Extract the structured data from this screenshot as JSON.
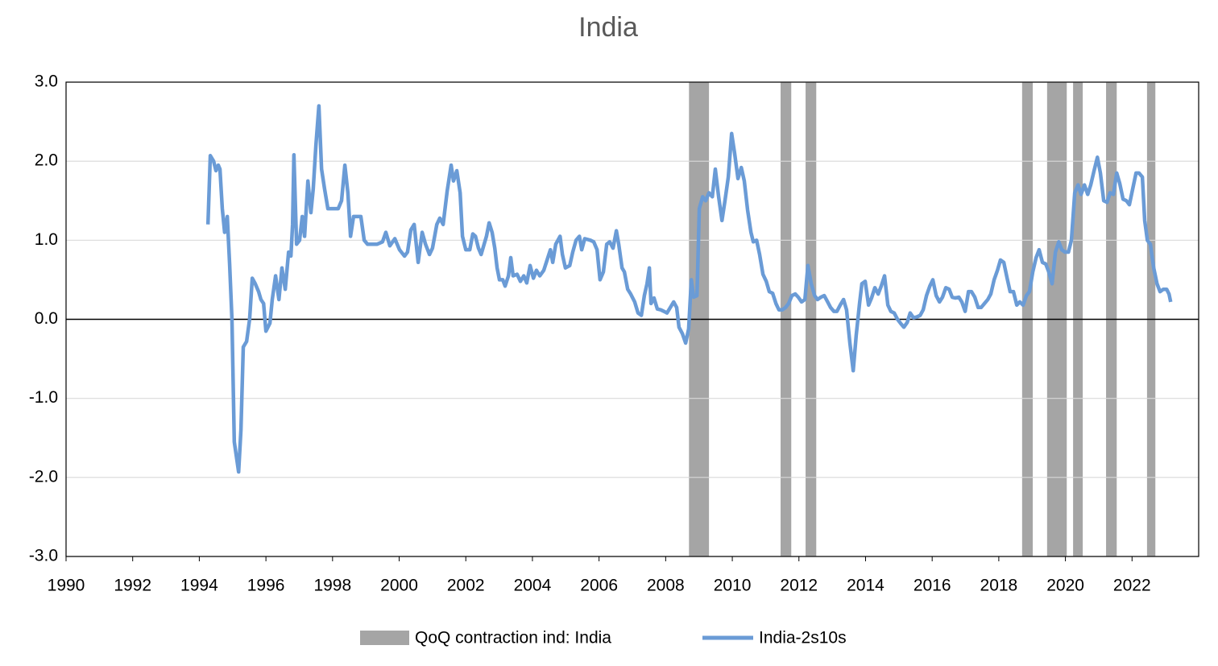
{
  "chart_data": {
    "type": "line",
    "title": "India",
    "xlim": [
      1990,
      2024
    ],
    "xticks": [
      1990,
      1992,
      1994,
      1996,
      1998,
      2000,
      2002,
      2004,
      2006,
      2008,
      2010,
      2012,
      2014,
      2016,
      2018,
      2020,
      2022
    ],
    "ylim": [
      -3,
      3
    ],
    "yticks": [
      {
        "value": -3,
        "label": "-3.0"
      },
      {
        "value": -2,
        "label": "-2.0"
      },
      {
        "value": -1,
        "label": "-1.0"
      },
      {
        "value": 0,
        "label": "0.0"
      },
      {
        "value": 1,
        "label": "1.0"
      },
      {
        "value": 2,
        "label": "2.0"
      },
      {
        "value": 3,
        "label": "3.0"
      }
    ],
    "grid": true,
    "shading": {
      "name": "QoQ contraction ind: India",
      "color": "#a5a5a5",
      "spans": [
        [
          2008.7,
          2009.3
        ],
        [
          2011.45,
          2011.77
        ],
        [
          2012.2,
          2012.52
        ],
        [
          2018.7,
          2019.02
        ],
        [
          2019.45,
          2020.04
        ],
        [
          2020.23,
          2020.52
        ],
        [
          2021.22,
          2021.54
        ],
        [
          2022.45,
          2022.7
        ]
      ]
    },
    "x": [
      1994.26,
      1994.33,
      1994.43,
      1994.5,
      1994.57,
      1994.62,
      1994.69,
      1994.76,
      1994.84,
      1994.91,
      1994.98,
      1995.05,
      1995.18,
      1995.25,
      1995.32,
      1995.42,
      1995.51,
      1995.59,
      1995.68,
      1995.78,
      1995.85,
      1995.93,
      1996.0,
      1996.12,
      1996.19,
      1996.29,
      1996.39,
      1996.48,
      1996.58,
      1996.68,
      1996.75,
      1996.8,
      1996.84,
      1996.92,
      1997.01,
      1997.09,
      1997.16,
      1997.26,
      1997.35,
      1997.42,
      1997.5,
      1997.59,
      1997.67,
      1997.76,
      1997.86,
      1997.98,
      1998.17,
      1998.27,
      1998.37,
      1998.46,
      1998.54,
      1998.63,
      1998.85,
      1998.95,
      1999.05,
      1999.34,
      1999.5,
      1999.6,
      1999.72,
      1999.87,
      2000.01,
      2000.16,
      2000.25,
      2000.35,
      2000.45,
      2000.57,
      2000.69,
      2000.79,
      2000.91,
      2001.0,
      2001.13,
      2001.22,
      2001.32,
      2001.44,
      2001.56,
      2001.63,
      2001.73,
      2001.83,
      2001.9,
      2002.0,
      2002.12,
      2002.21,
      2002.29,
      2002.38,
      2002.46,
      2002.55,
      2002.62,
      2002.7,
      2002.79,
      2002.87,
      2002.94,
      2003.01,
      2003.11,
      2003.18,
      2003.28,
      2003.35,
      2003.42,
      2003.54,
      2003.64,
      2003.74,
      2003.83,
      2003.93,
      2004.03,
      2004.12,
      2004.22,
      2004.34,
      2004.44,
      2004.54,
      2004.61,
      2004.7,
      2004.83,
      2004.9,
      2004.99,
      2005.12,
      2005.21,
      2005.31,
      2005.41,
      2005.48,
      2005.57,
      2005.74,
      2005.84,
      2005.94,
      2006.03,
      2006.13,
      2006.23,
      2006.32,
      2006.42,
      2006.52,
      2006.59,
      2006.69,
      2006.76,
      2006.86,
      2006.95,
      2007.07,
      2007.17,
      2007.27,
      2007.36,
      2007.44,
      2007.51,
      2007.56,
      2007.65,
      2007.75,
      2007.85,
      2007.95,
      2008.04,
      2008.14,
      2008.24,
      2008.33,
      2008.4,
      2008.5,
      2008.6,
      2008.69,
      2008.77,
      2008.84,
      2008.94,
      2009.01,
      2009.11,
      2009.2,
      2009.3,
      2009.4,
      2009.49,
      2009.59,
      2009.69,
      2009.78,
      2009.88,
      2009.98,
      2010.07,
      2010.17,
      2010.27,
      2010.36,
      2010.46,
      2010.56,
      2010.63,
      2010.73,
      2010.82,
      2010.92,
      2011.02,
      2011.11,
      2011.21,
      2011.31,
      2011.4,
      2011.5,
      2011.6,
      2011.69,
      2011.79,
      2011.89,
      2011.98,
      2012.08,
      2012.18,
      2012.27,
      2012.37,
      2012.47,
      2012.56,
      2012.66,
      2012.76,
      2012.85,
      2012.95,
      2013.05,
      2013.14,
      2013.24,
      2013.34,
      2013.43,
      2013.53,
      2013.63,
      2013.72,
      2013.82,
      2013.89,
      2013.99,
      2014.09,
      2014.18,
      2014.28,
      2014.38,
      2014.47,
      2014.57,
      2014.67,
      2014.76,
      2014.86,
      2014.96,
      2015.05,
      2015.15,
      2015.25,
      2015.34,
      2015.44,
      2015.54,
      2015.64,
      2015.73,
      2015.83,
      2015.93,
      2016.02,
      2016.12,
      2016.22,
      2016.31,
      2016.41,
      2016.51,
      2016.6,
      2016.7,
      2016.8,
      2016.89,
      2016.99,
      2017.09,
      2017.18,
      2017.28,
      2017.38,
      2017.47,
      2017.57,
      2017.67,
      2017.76,
      2017.86,
      2017.96,
      2018.05,
      2018.15,
      2018.25,
      2018.34,
      2018.44,
      2018.54,
      2018.63,
      2018.73,
      2018.83,
      2018.92,
      2019.02,
      2019.12,
      2019.21,
      2019.31,
      2019.41,
      2019.5,
      2019.6,
      2019.7,
      2019.8,
      2019.89,
      2019.99,
      2020.09,
      2020.18,
      2020.28,
      2020.38,
      2020.47,
      2020.57,
      2020.67,
      2020.76,
      2020.86,
      2020.96,
      2021.05,
      2021.15,
      2021.25,
      2021.34,
      2021.44,
      2021.54,
      2021.63,
      2021.73,
      2021.83,
      2021.92,
      2022.02,
      2022.12,
      2022.21,
      2022.31,
      2022.38,
      2022.46,
      2022.55,
      2022.65,
      2022.75,
      2022.84,
      2022.94,
      2023.04,
      2023.11,
      2023.16
    ],
    "series": [
      {
        "name": "India-2s10s",
        "color": "#6a9bd6",
        "values": [
          1.2,
          2.07,
          2.0,
          1.88,
          1.95,
          1.9,
          1.4,
          1.1,
          1.3,
          0.7,
          0.0,
          -1.55,
          -1.93,
          -1.4,
          -0.35,
          -0.28,
          0.0,
          0.52,
          0.45,
          0.35,
          0.25,
          0.2,
          -0.15,
          -0.05,
          0.25,
          0.55,
          0.25,
          0.65,
          0.38,
          0.85,
          0.8,
          1.2,
          2.08,
          0.95,
          1.0,
          1.3,
          1.05,
          1.75,
          1.35,
          1.65,
          2.2,
          2.7,
          1.9,
          1.65,
          1.4,
          1.4,
          1.4,
          1.5,
          1.95,
          1.6,
          1.05,
          1.3,
          1.3,
          1.0,
          0.95,
          0.95,
          0.98,
          1.1,
          0.93,
          1.02,
          0.88,
          0.8,
          0.85,
          1.13,
          1.2,
          0.72,
          1.1,
          0.95,
          0.82,
          0.9,
          1.2,
          1.28,
          1.2,
          1.62,
          1.95,
          1.75,
          1.88,
          1.6,
          1.05,
          0.88,
          0.88,
          1.08,
          1.05,
          0.9,
          0.82,
          0.95,
          1.05,
          1.22,
          1.1,
          0.9,
          0.65,
          0.5,
          0.5,
          0.42,
          0.55,
          0.78,
          0.55,
          0.57,
          0.48,
          0.55,
          0.46,
          0.68,
          0.52,
          0.62,
          0.55,
          0.62,
          0.75,
          0.88,
          0.72,
          0.95,
          1.05,
          0.82,
          0.65,
          0.68,
          0.85,
          1.0,
          1.05,
          0.88,
          1.02,
          1.0,
          0.98,
          0.88,
          0.5,
          0.6,
          0.95,
          0.98,
          0.9,
          1.12,
          0.95,
          0.65,
          0.6,
          0.38,
          0.32,
          0.22,
          0.08,
          0.05,
          0.3,
          0.45,
          0.65,
          0.2,
          0.27,
          0.13,
          0.12,
          0.1,
          0.08,
          0.15,
          0.22,
          0.15,
          -0.1,
          -0.18,
          -0.3,
          -0.12,
          0.5,
          0.28,
          0.3,
          1.4,
          1.55,
          1.5,
          1.6,
          1.55,
          1.9,
          1.55,
          1.25,
          1.5,
          1.8,
          2.35,
          2.1,
          1.78,
          1.92,
          1.75,
          1.38,
          1.1,
          0.98,
          1.0,
          0.82,
          0.57,
          0.48,
          0.35,
          0.33,
          0.2,
          0.12,
          0.12,
          0.15,
          0.2,
          0.3,
          0.32,
          0.28,
          0.22,
          0.25,
          0.68,
          0.45,
          0.3,
          0.25,
          0.28,
          0.3,
          0.23,
          0.15,
          0.1,
          0.1,
          0.18,
          0.25,
          0.12,
          -0.3,
          -0.65,
          -0.2,
          0.2,
          0.45,
          0.48,
          0.18,
          0.27,
          0.4,
          0.32,
          0.42,
          0.55,
          0.18,
          0.1,
          0.08,
          0.0,
          -0.05,
          -0.1,
          -0.04,
          0.08,
          0.02,
          0.03,
          0.05,
          0.12,
          0.3,
          0.42,
          0.5,
          0.3,
          0.22,
          0.28,
          0.4,
          0.38,
          0.28,
          0.27,
          0.28,
          0.22,
          0.1,
          0.35,
          0.35,
          0.28,
          0.15,
          0.15,
          0.2,
          0.25,
          0.32,
          0.5,
          0.62,
          0.75,
          0.72,
          0.52,
          0.35,
          0.35,
          0.18,
          0.22,
          0.18,
          0.3,
          0.35,
          0.6,
          0.78,
          0.88,
          0.72,
          0.7,
          0.6,
          0.45,
          0.85,
          0.98,
          0.88,
          0.85,
          0.85,
          1.0,
          1.6,
          1.7,
          1.58,
          1.7,
          1.58,
          1.7,
          1.88,
          2.05,
          1.85,
          1.5,
          1.48,
          1.6,
          1.58,
          1.85,
          1.72,
          1.52,
          1.5,
          1.45,
          1.65,
          1.85,
          1.85,
          1.8,
          1.25,
          1.0,
          0.95,
          0.65,
          0.45,
          0.35,
          0.38,
          0.38,
          0.32,
          0.22
        ]
      }
    ]
  }
}
